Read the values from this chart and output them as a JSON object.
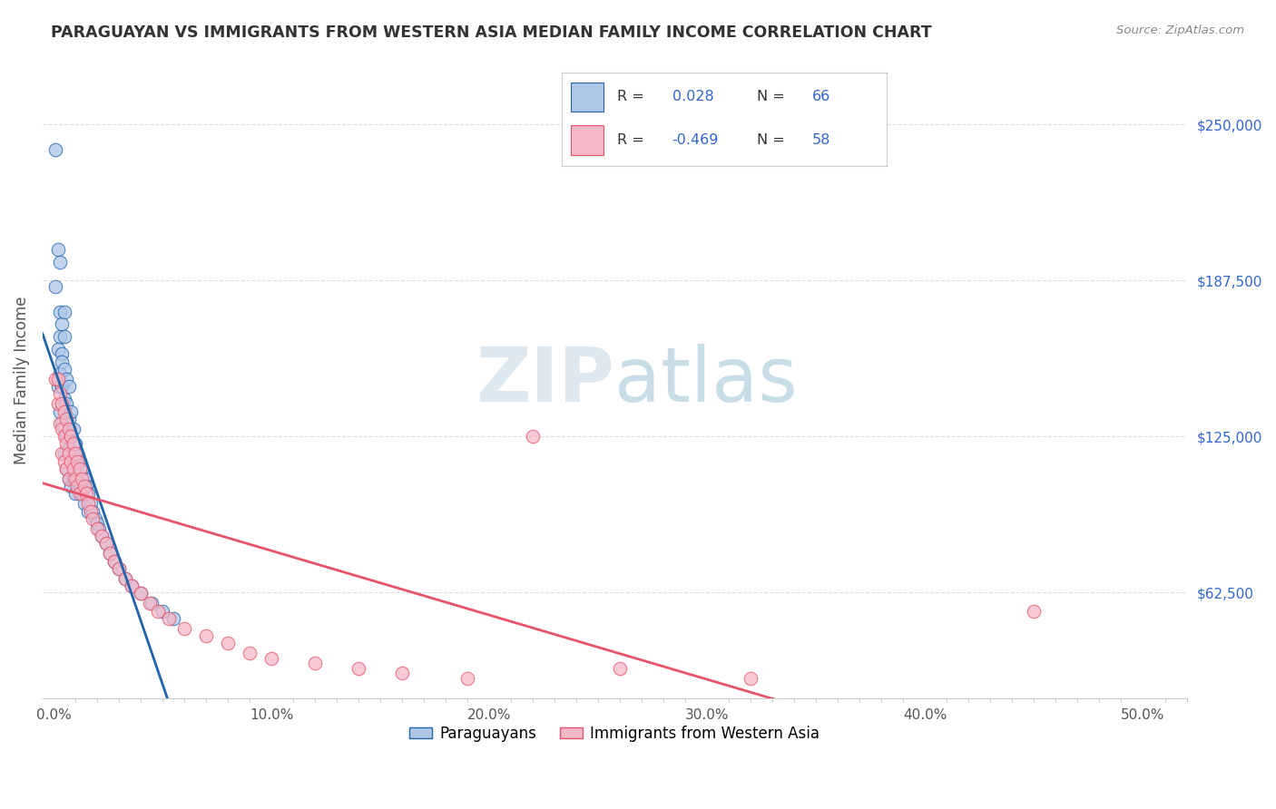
{
  "title": "PARAGUAYAN VS IMMIGRANTS FROM WESTERN ASIA MEDIAN FAMILY INCOME CORRELATION CHART",
  "source": "Source: ZipAtlas.com",
  "ylabel": "Median Family Income",
  "xlabel_ticks": [
    "0.0%",
    "10.0%",
    "20.0%",
    "30.0%",
    "40.0%",
    "50.0%"
  ],
  "xlabel_vals": [
    0.0,
    0.1,
    0.2,
    0.3,
    0.4,
    0.5
  ],
  "ytick_labels": [
    "$62,500",
    "$125,000",
    "$187,500",
    "$250,000"
  ],
  "ytick_vals": [
    62500,
    125000,
    187500,
    250000
  ],
  "ylim": [
    20000,
    275000
  ],
  "xlim": [
    -0.005,
    0.52
  ],
  "r_paraguayan": 0.028,
  "n_paraguayan": 66,
  "r_western_asia": -0.469,
  "n_western_asia": 58,
  "paraguayan_color": "#aec6e8",
  "western_asia_color": "#f4b8c8",
  "paraguayan_line_color": "#2166ac",
  "western_asia_line_color": "#e8536a",
  "trend_line_color": "#aaaacc",
  "background_color": "#ffffff",
  "grid_color": "#dddddd",
  "legend_r_color": "#3366cc",
  "watermark_color": "#dde8f0",
  "paraguayan_x": [
    0.001,
    0.001,
    0.002,
    0.002,
    0.002,
    0.003,
    0.003,
    0.003,
    0.003,
    0.003,
    0.004,
    0.004,
    0.004,
    0.004,
    0.004,
    0.005,
    0.005,
    0.005,
    0.005,
    0.005,
    0.005,
    0.006,
    0.006,
    0.006,
    0.006,
    0.007,
    0.007,
    0.007,
    0.007,
    0.008,
    0.008,
    0.008,
    0.008,
    0.009,
    0.009,
    0.009,
    0.01,
    0.01,
    0.01,
    0.011,
    0.011,
    0.012,
    0.012,
    0.013,
    0.013,
    0.014,
    0.014,
    0.015,
    0.016,
    0.016,
    0.017,
    0.018,
    0.019,
    0.02,
    0.021,
    0.022,
    0.024,
    0.026,
    0.028,
    0.03,
    0.033,
    0.036,
    0.04,
    0.045,
    0.05,
    0.055
  ],
  "paraguayan_y": [
    240000,
    185000,
    200000,
    160000,
    145000,
    175000,
    165000,
    150000,
    135000,
    195000,
    170000,
    158000,
    145000,
    130000,
    155000,
    165000,
    152000,
    140000,
    128000,
    118000,
    175000,
    148000,
    138000,
    125000,
    112000,
    145000,
    132000,
    120000,
    108000,
    135000,
    125000,
    115000,
    105000,
    128000,
    118000,
    108000,
    122000,
    112000,
    102000,
    118000,
    108000,
    115000,
    105000,
    112000,
    102000,
    108000,
    98000,
    105000,
    102000,
    95000,
    98000,
    95000,
    92000,
    90000,
    88000,
    85000,
    82000,
    78000,
    75000,
    72000,
    68000,
    65000,
    62000,
    58000,
    55000,
    52000
  ],
  "western_asia_x": [
    0.001,
    0.002,
    0.002,
    0.003,
    0.003,
    0.004,
    0.004,
    0.004,
    0.005,
    0.005,
    0.005,
    0.006,
    0.006,
    0.006,
    0.007,
    0.007,
    0.007,
    0.008,
    0.008,
    0.009,
    0.009,
    0.01,
    0.01,
    0.011,
    0.011,
    0.012,
    0.012,
    0.013,
    0.014,
    0.015,
    0.016,
    0.017,
    0.018,
    0.02,
    0.022,
    0.024,
    0.026,
    0.028,
    0.03,
    0.033,
    0.036,
    0.04,
    0.044,
    0.048,
    0.053,
    0.06,
    0.07,
    0.08,
    0.09,
    0.1,
    0.12,
    0.14,
    0.16,
    0.19,
    0.22,
    0.26,
    0.32,
    0.45
  ],
  "western_asia_y": [
    148000,
    148000,
    138000,
    142000,
    130000,
    138000,
    128000,
    118000,
    135000,
    125000,
    115000,
    132000,
    122000,
    112000,
    128000,
    118000,
    108000,
    125000,
    115000,
    122000,
    112000,
    118000,
    108000,
    115000,
    105000,
    112000,
    102000,
    108000,
    105000,
    102000,
    98000,
    95000,
    92000,
    88000,
    85000,
    82000,
    78000,
    75000,
    72000,
    68000,
    65000,
    62000,
    58000,
    55000,
    52000,
    48000,
    45000,
    42000,
    38000,
    36000,
    34000,
    32000,
    30000,
    28000,
    125000,
    32000,
    28000,
    55000
  ]
}
